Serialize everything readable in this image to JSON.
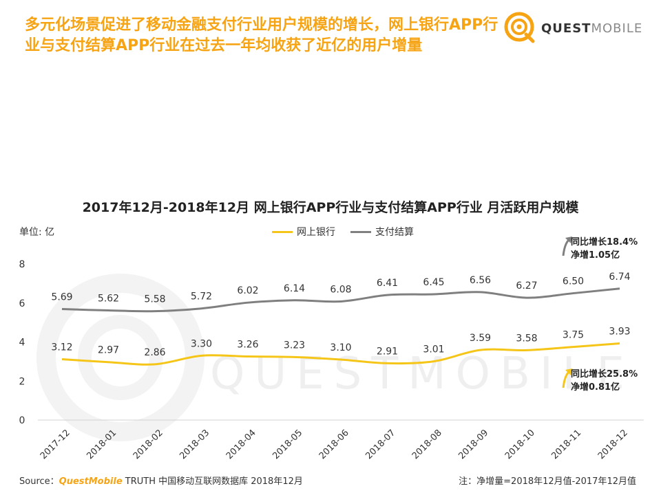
{
  "header": {
    "title": "多元化场景促进了移动金融支付行业用户规模的增长，网上银行APP行业与支付结算APP行业在过去一年均收获了近亿的用户增量"
  },
  "brand": {
    "name_bold": "QUEST",
    "name_light": "MOBILE",
    "watermark": "QUESTMOBILE"
  },
  "colors": {
    "accent": "#f6a414",
    "bank_series": "#f5c518",
    "pay_series": "#7f7f7f"
  },
  "chart_data": {
    "type": "line",
    "title": "2017年12月-2018年12月 网上银行APP行业与支付结算APP行业 月活跃用户规模",
    "unit_label": "单位: 亿",
    "ylim": [
      0,
      8
    ],
    "yticks": [
      "0",
      "2",
      "4",
      "6",
      "8"
    ],
    "grid": false,
    "legend_position": "top-center",
    "categories": [
      "2017-12",
      "2018-01",
      "2018-02",
      "2018-03",
      "2018-04",
      "2018-05",
      "2018-06",
      "2018-07",
      "2018-08",
      "2018-09",
      "2018-10",
      "2018-11",
      "2018-12"
    ],
    "series": [
      {
        "name": "网上银行",
        "values": [
          3.12,
          2.97,
          2.86,
          3.3,
          3.26,
          3.23,
          3.1,
          2.91,
          3.01,
          3.59,
          3.58,
          3.75,
          3.93
        ],
        "labels": [
          "3.12",
          "2.97",
          "2.86",
          "3.30",
          "3.26",
          "3.23",
          "3.10",
          "2.91",
          "3.01",
          "3.59",
          "3.58",
          "3.75",
          "3.93"
        ]
      },
      {
        "name": "支付结算",
        "values": [
          5.69,
          5.62,
          5.58,
          5.72,
          6.02,
          6.14,
          6.08,
          6.41,
          6.45,
          6.56,
          6.27,
          6.5,
          6.74
        ],
        "labels": [
          "5.69",
          "5.62",
          "5.58",
          "5.72",
          "6.02",
          "6.14",
          "6.08",
          "6.41",
          "6.45",
          "6.56",
          "6.27",
          "6.50",
          "6.74"
        ]
      }
    ],
    "annotations": {
      "pay": {
        "line1": "同比增长18.4%",
        "line2": "净增1.05亿"
      },
      "bank": {
        "line1": "同比增长25.8%",
        "line2": "净增0.81亿"
      }
    }
  },
  "footer": {
    "source_prefix": "Source：",
    "source_brand": "QuestMobile",
    "source_rest": " TRUTH 中国移动互联网数据库 2018年12月",
    "note": "注：净增量=2018年12月值-2017年12月值"
  }
}
